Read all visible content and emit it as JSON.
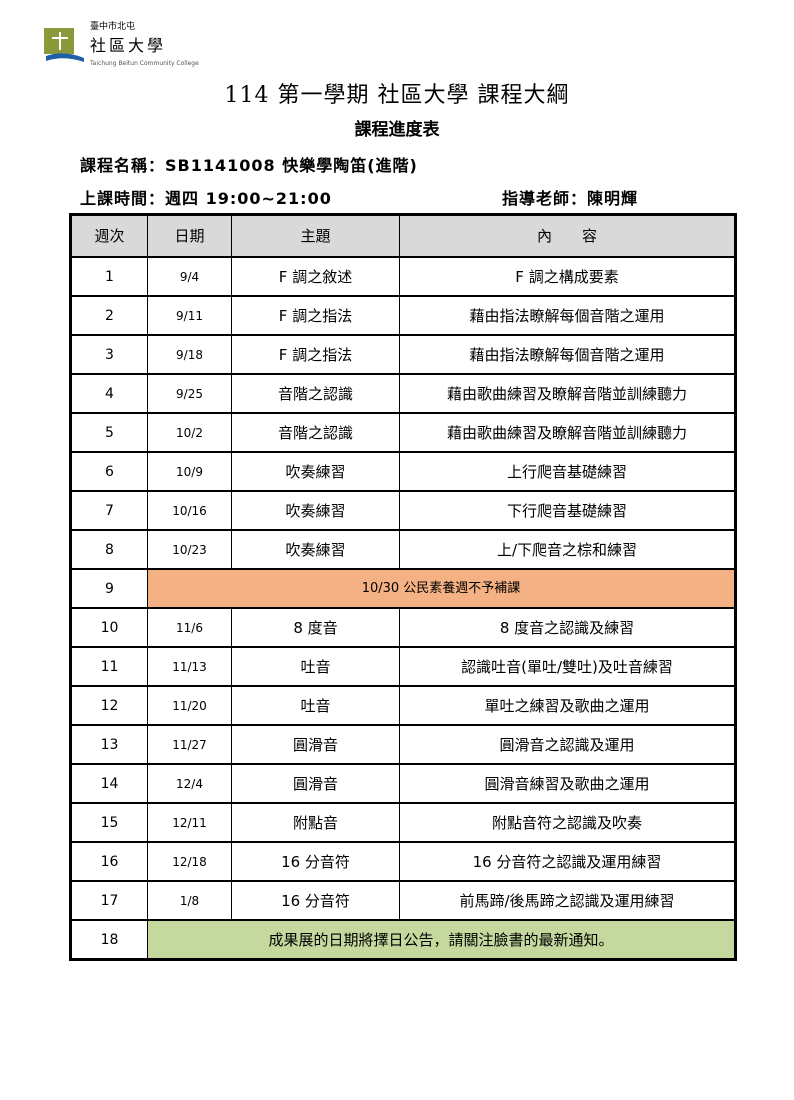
{
  "logo": {
    "top": "臺中市北屯",
    "name": "社區大學",
    "sub": "Taichung Beitun Community College"
  },
  "title": "114 第一學期 社區大學 課程大綱",
  "subtitle": "課程進度表",
  "course_name": "課程名稱：SB1141008 快樂學陶笛(進階)",
  "class_time": "上課時間：週四 19:00~21:00",
  "teacher": "指導老師：陳明輝",
  "headers": [
    "週次",
    "日期",
    "主題",
    "內　　容"
  ],
  "colors": {
    "header_bg": "#d9d9d9",
    "holiday_bg": "#f4b183",
    "final_bg": "#c5d89d"
  },
  "rows": [
    {
      "week": "1",
      "date": "9/4",
      "topic": "F 調之敘述",
      "content": "F 調之構成要素"
    },
    {
      "week": "2",
      "date": "9/11",
      "topic": "F 調之指法",
      "content": "藉由指法瞭解每個音階之運用"
    },
    {
      "week": "3",
      "date": "9/18",
      "topic": "F 調之指法",
      "content": "藉由指法瞭解每個音階之運用"
    },
    {
      "week": "4",
      "date": "9/25",
      "topic": "音階之認識",
      "content": "藉由歌曲練習及瞭解音階並訓練聽力"
    },
    {
      "week": "5",
      "date": "10/2",
      "topic": "音階之認識",
      "content": "藉由歌曲練習及瞭解音階並訓練聽力"
    },
    {
      "week": "6",
      "date": "10/9",
      "topic": "吹奏練習",
      "content": "上行爬音基礎練習"
    },
    {
      "week": "7",
      "date": "10/16",
      "topic": "吹奏練習",
      "content": "下行爬音基礎練習"
    },
    {
      "week": "8",
      "date": "10/23",
      "topic": "吹奏練習",
      "content": "上/下爬音之棕和練習"
    },
    {
      "week": "9",
      "note": "10/30 公民素養週不予補課"
    },
    {
      "week": "10",
      "date": "11/6",
      "topic": "8 度音",
      "content": "8 度音之認識及練習"
    },
    {
      "week": "11",
      "date": "11/13",
      "topic": "吐音",
      "content": "認識吐音(單吐/雙吐)及吐音練習"
    },
    {
      "week": "12",
      "date": "11/20",
      "topic": "吐音",
      "content": "單吐之練習及歌曲之運用"
    },
    {
      "week": "13",
      "date": "11/27",
      "topic": "圓滑音",
      "content": "圓滑音之認識及運用"
    },
    {
      "week": "14",
      "date": "12/4",
      "topic": "圓滑音",
      "content": "圓滑音練習及歌曲之運用"
    },
    {
      "week": "15",
      "date": "12/11",
      "topic": "附點音",
      "content": "附點音符之認識及吹奏"
    },
    {
      "week": "16",
      "date": "12/18",
      "topic": "16 分音符",
      "content": "16 分音符之認識及運用練習"
    },
    {
      "week": "17",
      "date": "1/8",
      "topic": "16 分音符",
      "content": "前馬蹄/後馬蹄之認識及運用練習"
    },
    {
      "week": "18",
      "note": "成果展的日期將擇日公告，請關注臉書的最新通知。"
    }
  ]
}
